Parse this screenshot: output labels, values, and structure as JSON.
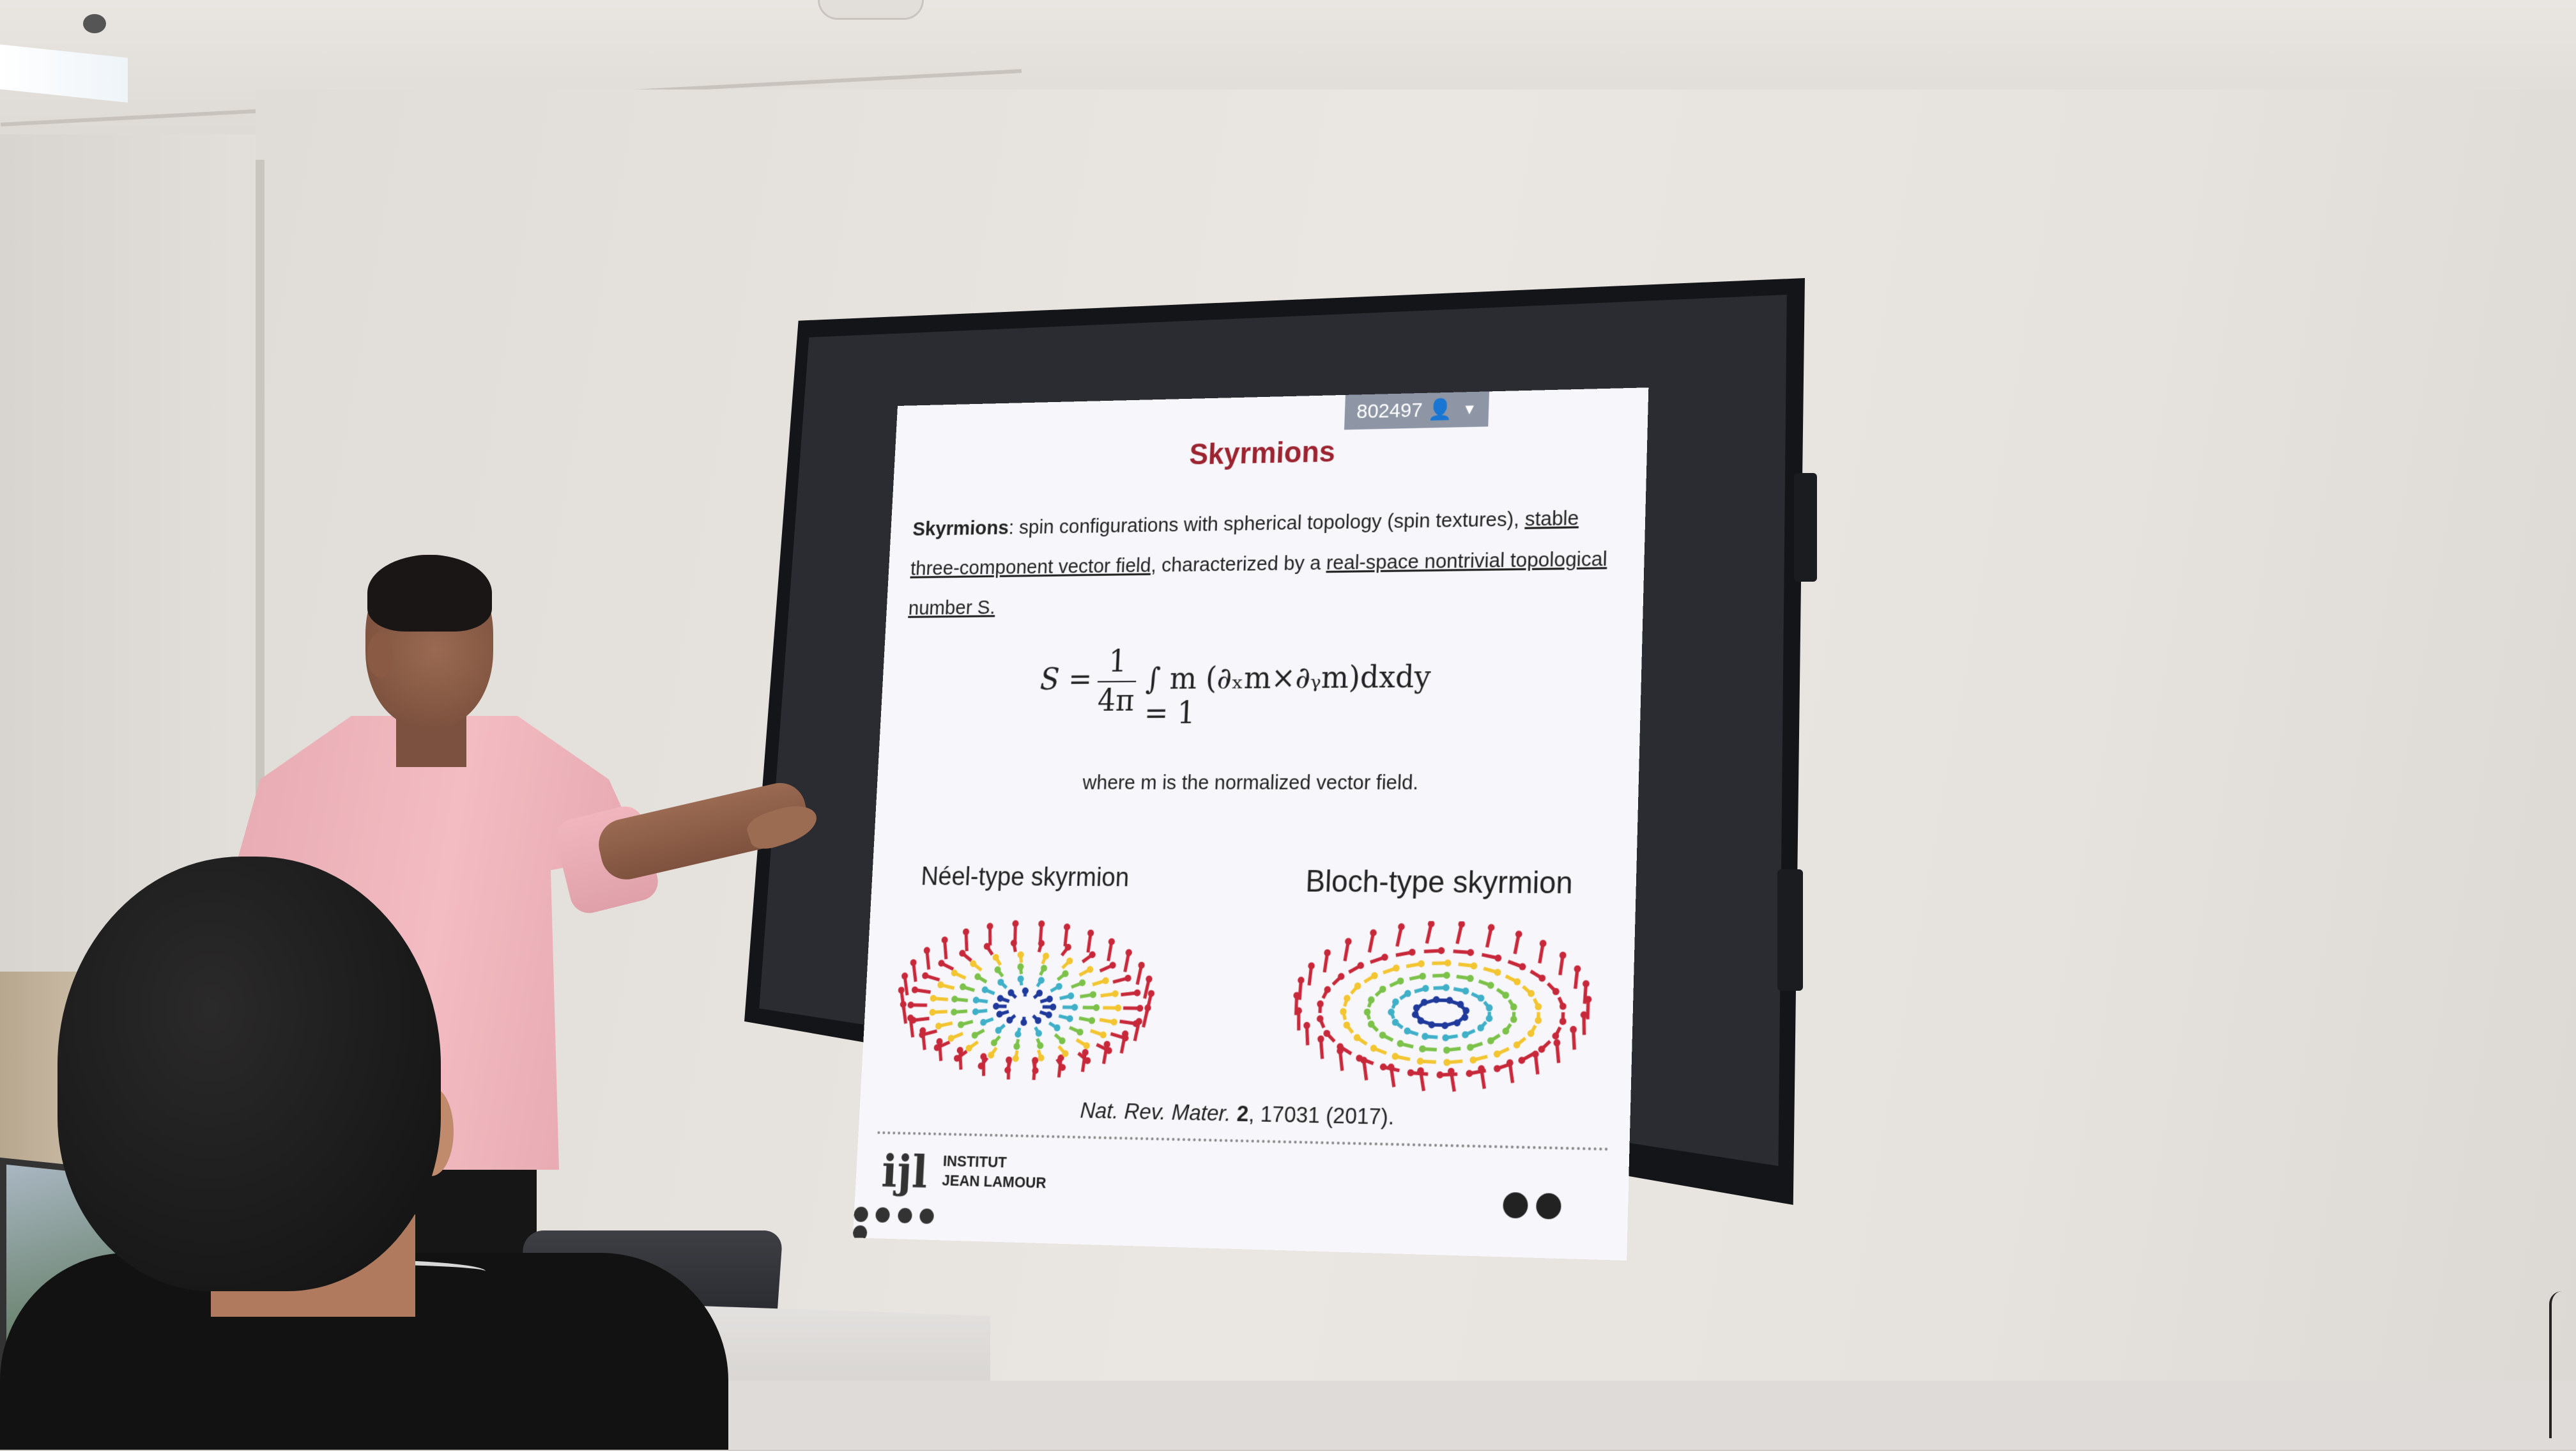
{
  "slide": {
    "badge": "802497",
    "title": "Skyrmions",
    "intro_bold": "Skyrmions",
    "intro_rest": ": spin configurations with spherical topology (spin textures), ",
    "intro_u1": "stable three-component vector field",
    "intro_mid": ", characterized by a ",
    "intro_u2": "real-space nontrivial topological number S.",
    "formula_lhs": "S =",
    "formula_num": "1",
    "formula_den": "4π",
    "formula_body": "∫ m (∂ₓm×∂ᵧm)dxdy = 1",
    "where_note": "where m is the normalized vector field.",
    "caption_neel": "Néel-type skyrmion",
    "caption_bloch": "Bloch-type skyrmion",
    "ref_journal": "Nat. Rev. Mater.",
    "ref_volume": "2",
    "ref_rest": ", 17031 (2017).",
    "logo_line1": "INSTITUT",
    "logo_line2": "JEAN LAMOUR",
    "logo_mark": "ijl"
  },
  "colors": {
    "title": "#9b2430",
    "arrow_red": "#c7283a",
    "arrow_yellow": "#f2c531",
    "arrow_green": "#7cc24a",
    "arrow_cyan": "#3fb0c8",
    "arrow_blue": "#1f3a9b"
  },
  "icons": [
    "pen-icon",
    "search-icon",
    "settings-icon",
    "menu-icon",
    "forward-icon",
    "person-icon",
    "chevron-down-icon"
  ]
}
